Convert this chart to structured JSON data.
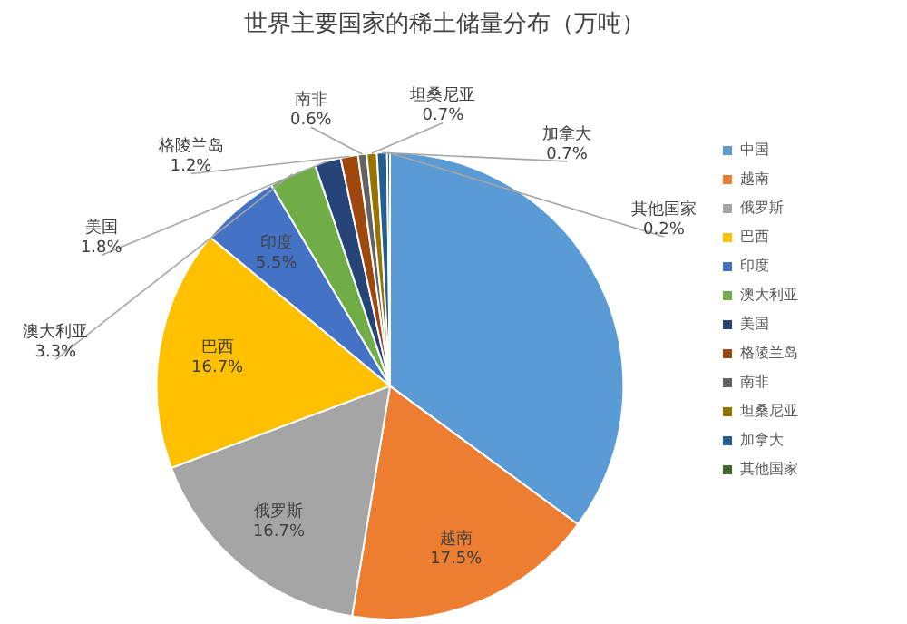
{
  "chart_data": {
    "type": "pie",
    "title": "世界主要国家的稀土储量分布（万吨）",
    "categories": [
      "中国",
      "越南",
      "俄罗斯",
      "巴西",
      "印度",
      "澳大利亚",
      "美国",
      "格陵兰岛",
      "南非",
      "坦桑尼亚",
      "加拿大",
      "其他国家"
    ],
    "values": [
      35.1,
      17.5,
      16.7,
      16.7,
      5.5,
      3.3,
      1.8,
      1.2,
      0.6,
      0.7,
      0.7,
      0.2
    ],
    "colors": [
      "#5b9bd5",
      "#ed7d31",
      "#a5a5a5",
      "#ffc000",
      "#4472c4",
      "#70ad47",
      "#264478",
      "#9e480e",
      "#636363",
      "#997300",
      "#255e91",
      "#43682b"
    ],
    "value_labels": [
      null,
      "17.5%",
      "16.7%",
      "16.7%",
      "5.5%",
      "3.3%",
      "1.8%",
      "1.2%",
      "0.6%",
      "0.7%",
      "0.7%",
      "0.2%"
    ],
    "legend": "right"
  }
}
